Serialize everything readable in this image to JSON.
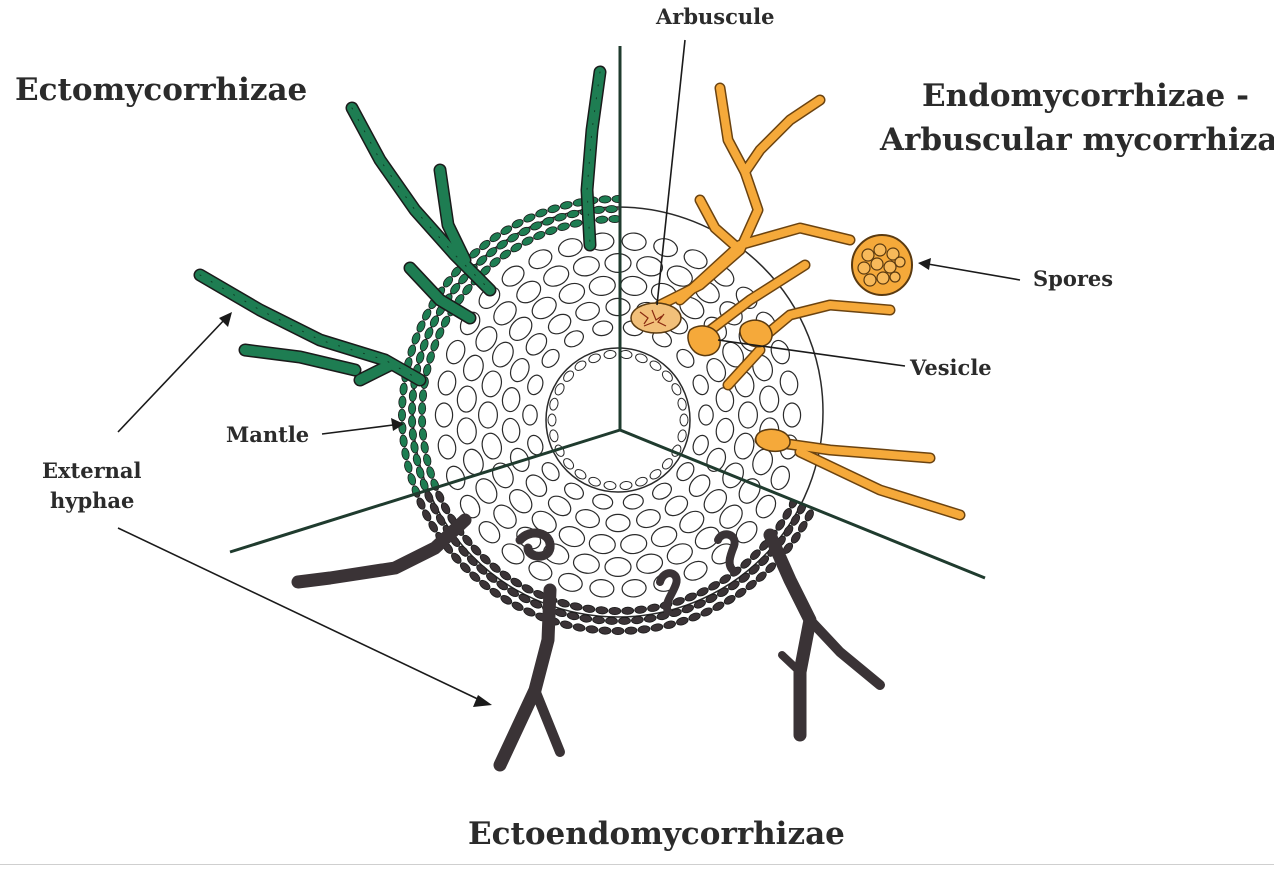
{
  "titles": {
    "ecto": "Ectomycorrhizae",
    "endo_line1": "Endomycorrhizae -",
    "endo_line2": "Arbuscular mycorrhizae",
    "ectoendo": "Ectoendomycorrhizae"
  },
  "labels": {
    "arbuscule": "Arbuscule",
    "spores": "Spores",
    "vesicle": "Vesicle",
    "mantle": "Mantle",
    "external_hyphae_line1": "External",
    "external_hyphae_line2": "hyphae"
  },
  "colors": {
    "ecto_green": "#1e7d52",
    "endo_orange": "#f5a93a",
    "ectoendo_dark": "#3a3336",
    "outline": "#2a2a2a",
    "text": "#2b2b2b"
  }
}
